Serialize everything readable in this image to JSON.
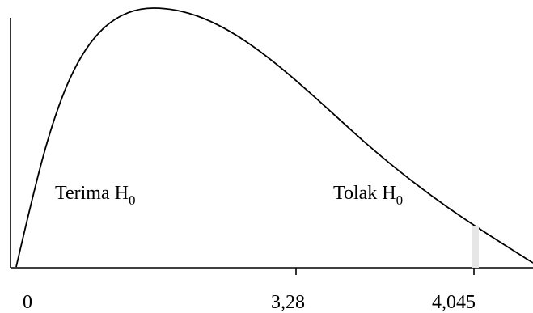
{
  "figure": {
    "type": "distribution-curve",
    "regions": {
      "accept": {
        "text": "Terima H",
        "sub": "0"
      },
      "reject": {
        "text": "Tolak H",
        "sub": "0"
      }
    },
    "ticks": {
      "origin": "0",
      "f_computed": "3,28",
      "f_critical": "4,045"
    },
    "colors": {
      "line": "#000000",
      "critical_marker": "#e6e6e6"
    }
  }
}
